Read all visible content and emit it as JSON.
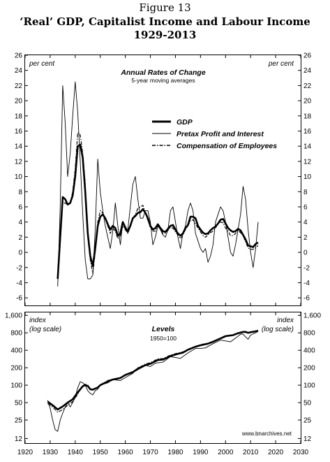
{
  "figure": {
    "number": "Figure 13",
    "title_line1": "‘Real’ GDP, Capitalist Income and Labour Income",
    "title_line2": "1929-2013"
  },
  "source_note": "www.bnarchives.net",
  "chart_data": [
    {
      "type": "line",
      "title": "Annual Rates of Change",
      "subtitle": "5-year moving averages",
      "unit_left": "per cent",
      "unit_right": "per cent",
      "xlim": [
        1920,
        2030
      ],
      "ylim": [
        -7,
        26
      ],
      "yticks": [
        -6,
        -4,
        -2,
        0,
        2,
        4,
        6,
        8,
        10,
        12,
        14,
        16,
        18,
        20,
        22,
        24,
        26
      ],
      "legend_position": "upper-right",
      "series": [
        {
          "name": "GDP",
          "style": "thick",
          "x": [
            1933,
            1934,
            1935,
            1936,
            1937,
            1938,
            1939,
            1940,
            1941,
            1942,
            1943,
            1944,
            1945,
            1946,
            1947,
            1948,
            1949,
            1950,
            1951,
            1952,
            1953,
            1954,
            1955,
            1956,
            1957,
            1958,
            1959,
            1960,
            1961,
            1962,
            1963,
            1964,
            1965,
            1966,
            1967,
            1968,
            1969,
            1970,
            1971,
            1972,
            1973,
            1974,
            1975,
            1976,
            1977,
            1978,
            1979,
            1980,
            1981,
            1982,
            1983,
            1984,
            1985,
            1986,
            1987,
            1988,
            1989,
            1990,
            1991,
            1992,
            1993,
            1994,
            1995,
            1996,
            1997,
            1998,
            1999,
            2000,
            2001,
            2002,
            2003,
            2004,
            2005,
            2006,
            2007,
            2008,
            2009,
            2010,
            2011,
            2012,
            2013
          ],
          "y": [
            -3.5,
            2,
            7.3,
            7,
            6.3,
            6.5,
            7.5,
            10,
            14,
            14.2,
            12.5,
            8,
            2.5,
            -0.5,
            -1.8,
            0.5,
            3.5,
            4.7,
            5,
            4.5,
            3.7,
            3,
            3.5,
            3.2,
            2.2,
            2.5,
            4,
            3.3,
            2.7,
            3.5,
            4.5,
            4.8,
            5.2,
            5.3,
            5.7,
            5.2,
            4.5,
            3.5,
            3,
            3.2,
            3.7,
            3.2,
            2.8,
            2.7,
            3.1,
            3.5,
            3.6,
            3,
            2.5,
            2.2,
            2.5,
            3.2,
            3.6,
            4.7,
            4.7,
            4.5,
            3.5,
            3,
            2.6,
            2.4,
            2.5,
            2.9,
            3.2,
            3.4,
            3.8,
            4.3,
            4.4,
            3.8,
            3.2,
            2.9,
            2.7,
            2.8,
            3.1,
            2.9,
            2.3,
            1.7,
            0.9,
            0.8,
            0.7,
            1.1,
            1.3
          ]
        },
        {
          "name": "Pretax Profit and Interest",
          "style": "thin",
          "x": [
            1933,
            1934,
            1935,
            1936,
            1937,
            1938,
            1939,
            1940,
            1941,
            1942,
            1943,
            1944,
            1945,
            1946,
            1947,
            1948,
            1949,
            1950,
            1951,
            1952,
            1953,
            1954,
            1955,
            1956,
            1957,
            1958,
            1959,
            1960,
            1961,
            1962,
            1963,
            1964,
            1965,
            1966,
            1967,
            1968,
            1969,
            1970,
            1971,
            1972,
            1973,
            1974,
            1975,
            1976,
            1977,
            1978,
            1979,
            1980,
            1981,
            1982,
            1983,
            1984,
            1985,
            1986,
            1987,
            1988,
            1989,
            1990,
            1991,
            1992,
            1993,
            1994,
            1995,
            1996,
            1997,
            1998,
            1999,
            2000,
            2001,
            2002,
            2003,
            2004,
            2005,
            2006,
            2007,
            2008,
            2009,
            2010,
            2011,
            2012,
            2013
          ],
          "y": [
            -4.5,
            6,
            22,
            17,
            10,
            13,
            18,
            22.5,
            18.5,
            12,
            5,
            -1,
            -3.5,
            -3.5,
            -3,
            3,
            12.3,
            8,
            5.5,
            3.5,
            2,
            0.5,
            2.8,
            6.5,
            3.5,
            1,
            4,
            3,
            3,
            6,
            9,
            10,
            7,
            4.5,
            4.5,
            5.5,
            5.5,
            4,
            1,
            2,
            3.5,
            3,
            2.3,
            2,
            3,
            5.5,
            6,
            4,
            2,
            0.5,
            2.5,
            3.5,
            5.5,
            6.5,
            5.5,
            2.5,
            1.5,
            0.5,
            0,
            0.5,
            -1.3,
            -0.5,
            1,
            4,
            5,
            6,
            5.5,
            4,
            2,
            0,
            -0.5,
            1,
            3,
            5,
            8.7,
            7,
            3,
            0,
            -2,
            0.5,
            4
          ]
        },
        {
          "name": "Compensation of Employees",
          "style": "dash-dot",
          "x": [
            1933,
            1934,
            1935,
            1936,
            1937,
            1938,
            1939,
            1940,
            1941,
            1942,
            1943,
            1944,
            1945,
            1946,
            1947,
            1948,
            1949,
            1950,
            1951,
            1952,
            1953,
            1954,
            1955,
            1956,
            1957,
            1958,
            1959,
            1960,
            1961,
            1962,
            1963,
            1964,
            1965,
            1966,
            1967,
            1968,
            1969,
            1970,
            1971,
            1972,
            1973,
            1974,
            1975,
            1976,
            1977,
            1978,
            1979,
            1980,
            1981,
            1982,
            1983,
            1984,
            1985,
            1986,
            1987,
            1988,
            1989,
            1990,
            1991,
            1992,
            1993,
            1994,
            1995,
            1996,
            1997,
            1998,
            1999,
            2000,
            2001,
            2002,
            2003,
            2004,
            2005,
            2006,
            2007,
            2008,
            2009,
            2010,
            2011,
            2012,
            2013
          ],
          "y": [
            -3,
            3,
            6.5,
            6.5,
            6.3,
            6.5,
            8,
            11,
            15.8,
            15.5,
            13,
            9,
            2,
            -1,
            -2.8,
            0,
            4,
            5.5,
            5.2,
            4.5,
            3.5,
            2.5,
            3.2,
            2.8,
            1.8,
            2.2,
            3.5,
            3,
            2.5,
            3.5,
            4.5,
            5,
            5.8,
            6,
            6.2,
            5.2,
            4.2,
            3.3,
            2.8,
            2.8,
            3.5,
            3,
            2.5,
            2.5,
            2.9,
            3.3,
            3.2,
            2.7,
            2.3,
            1.8,
            2.3,
            3,
            3.5,
            4.2,
            4.3,
            3.8,
            3.2,
            2.7,
            2.2,
            2,
            2.3,
            2.6,
            2.8,
            3.2,
            3.8,
            4,
            3.9,
            3.2,
            2.8,
            2.2,
            2.2,
            2.5,
            2.9,
            2.6,
            2.2,
            1.4,
            0.6,
            0.4,
            0.4,
            0.6,
            0.9
          ]
        }
      ]
    },
    {
      "type": "line",
      "title": "Levels",
      "subtitle": "1950=100",
      "unit_left": "index",
      "unit_left_sub": "(log scale)",
      "unit_right": "index",
      "unit_right_sub": "(log scale)",
      "y_scale": "log",
      "xlim": [
        1920,
        2030
      ],
      "ylim": [
        10,
        1800
      ],
      "yticks": [
        12,
        25,
        50,
        100,
        200,
        400,
        800,
        1600
      ],
      "ytick_labels": [
        "12",
        "25",
        "50",
        "100",
        "200",
        "400",
        "800",
        "1,600"
      ],
      "xticks": [
        1920,
        1930,
        1940,
        1950,
        1960,
        1970,
        1980,
        1990,
        2000,
        2010,
        2020,
        2030
      ],
      "series": [
        {
          "name": "GDP",
          "style": "thick",
          "x": [
            1929,
            1931,
            1933,
            1935,
            1937,
            1939,
            1941,
            1943,
            1944,
            1945,
            1946,
            1947,
            1949,
            1950,
            1953,
            1955,
            1958,
            1960,
            1963,
            1965,
            1968,
            1970,
            1973,
            1975,
            1978,
            1980,
            1983,
            1985,
            1988,
            1990,
            1993,
            1995,
            1998,
            2000,
            2003,
            2005,
            2007,
            2008,
            2009,
            2010,
            2012,
            2013
          ],
          "y": [
            52,
            45,
            38,
            43,
            50,
            57,
            75,
            96,
            100,
            97,
            85,
            84,
            91,
            100,
            116,
            125,
            133,
            150,
            168,
            190,
            222,
            234,
            272,
            276,
            318,
            338,
            365,
            408,
            461,
            488,
            520,
            560,
            640,
            700,
            730,
            790,
            830,
            830,
            800,
            820,
            850,
            870
          ]
        },
        {
          "name": "Pretax Profit and Interest",
          "style": "thin",
          "x": [
            1929,
            1930,
            1931,
            1932,
            1933,
            1934,
            1935,
            1936,
            1937,
            1938,
            1939,
            1940,
            1941,
            1942,
            1943,
            1944,
            1945,
            1946,
            1947,
            1948,
            1949,
            1950,
            1953,
            1955,
            1958,
            1960,
            1963,
            1965,
            1968,
            1970,
            1972,
            1975,
            1978,
            1980,
            1982,
            1985,
            1988,
            1990,
            1992,
            1995,
            1998,
            2000,
            2002,
            2005,
            2006,
            2007,
            2008,
            2009,
            2010,
            2011,
            2012,
            2013
          ],
          "y": [
            55,
            40,
            25,
            17,
            16,
            25,
            33,
            42,
            50,
            42,
            50,
            62,
            90,
            115,
            110,
            100,
            80,
            72,
            68,
            80,
            85,
            100,
            110,
            125,
            120,
            135,
            160,
            200,
            220,
            210,
            240,
            250,
            310,
            300,
            290,
            360,
            430,
            430,
            440,
            520,
            600,
            580,
            560,
            700,
            760,
            760,
            680,
            620,
            730,
            770,
            800,
            850
          ]
        },
        {
          "name": "Compensation of Employees",
          "style": "dash-dot",
          "x": [
            1929,
            1931,
            1933,
            1935,
            1937,
            1939,
            1941,
            1943,
            1944,
            1945,
            1946,
            1947,
            1949,
            1950,
            1953,
            1955,
            1958,
            1960,
            1963,
            1965,
            1968,
            1970,
            1973,
            1975,
            1978,
            1980,
            1983,
            1985,
            1988,
            1990,
            1993,
            1995,
            1998,
            2000,
            2003,
            2005,
            2007,
            2008,
            2009,
            2010,
            2012,
            2013
          ],
          "y": [
            48,
            42,
            34,
            38,
            45,
            52,
            70,
            98,
            104,
            100,
            84,
            82,
            90,
            100,
            120,
            127,
            135,
            152,
            172,
            197,
            232,
            244,
            285,
            287,
            330,
            350,
            375,
            418,
            470,
            500,
            530,
            570,
            650,
            720,
            740,
            800,
            840,
            845,
            805,
            815,
            840,
            860
          ]
        }
      ]
    }
  ]
}
